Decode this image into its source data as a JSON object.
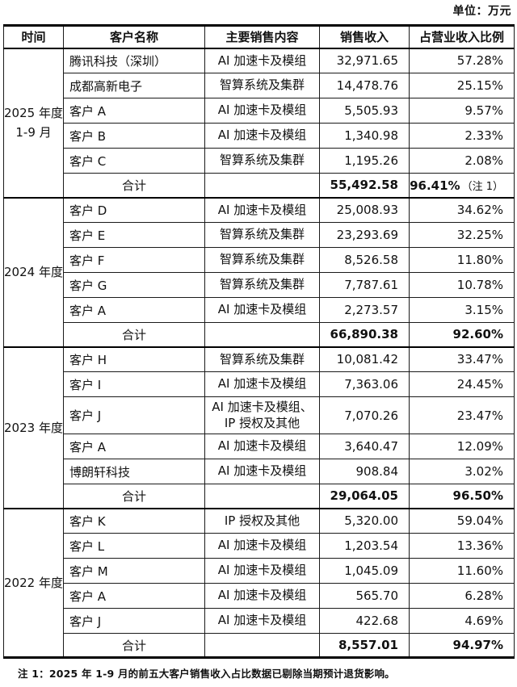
{
  "unit_label": "单位：万元",
  "table": {
    "columns": [
      "时间",
      "客户名称",
      "主要销售内容",
      "销售收入",
      "占营业收入比例"
    ],
    "sections": [
      {
        "period_lines": [
          "2025 年度",
          "1-9 月"
        ],
        "rows": [
          {
            "customer": "腾讯科技（深圳）",
            "content": "AI 加速卡及模组",
            "revenue": "32,971.65",
            "share": "57.28%"
          },
          {
            "customer": "成都高新电子",
            "content": "智算系统及集群",
            "revenue": "14,478.76",
            "share": "25.15%"
          },
          {
            "customer": "客户 A",
            "content": "AI 加速卡及模组",
            "revenue": "5,505.93",
            "share": "9.57%"
          },
          {
            "customer": "客户 B",
            "content": "AI 加速卡及模组",
            "revenue": "1,340.98",
            "share": "2.33%"
          },
          {
            "customer": "客户 C",
            "content": "智算系统及集群",
            "revenue": "1,195.26",
            "share": "2.08%"
          }
        ],
        "total": {
          "label": "合计",
          "revenue": "55,492.58",
          "share": "96.41%",
          "share_note": "（注 1）"
        }
      },
      {
        "period_lines": [
          "2024 年度"
        ],
        "rows": [
          {
            "customer": "客户 D",
            "content": "AI 加速卡及模组",
            "revenue": "25,008.93",
            "share": "34.62%"
          },
          {
            "customer": "客户 E",
            "content": "智算系统及集群",
            "revenue": "23,293.69",
            "share": "32.25%"
          },
          {
            "customer": "客户 F",
            "content": "智算系统及集群",
            "revenue": "8,526.58",
            "share": "11.80%"
          },
          {
            "customer": "客户 G",
            "content": "智算系统及集群",
            "revenue": "7,787.61",
            "share": "10.78%"
          },
          {
            "customer": "客户 A",
            "content": "AI 加速卡及模组",
            "revenue": "2,273.57",
            "share": "3.15%"
          }
        ],
        "total": {
          "label": "合计",
          "revenue": "66,890.38",
          "share": "92.60%"
        }
      },
      {
        "period_lines": [
          "2023 年度"
        ],
        "rows": [
          {
            "customer": "客户 H",
            "content": "智算系统及集群",
            "revenue": "10,081.42",
            "share": "33.47%"
          },
          {
            "customer": "客户 I",
            "content": "AI 加速卡及模组",
            "revenue": "7,363.06",
            "share": "24.45%"
          },
          {
            "customer": "客户 J",
            "content": "AI 加速卡及模组、IP 授权及其他",
            "revenue": "7,070.26",
            "share": "23.47%",
            "tall": true
          },
          {
            "customer": "客户 A",
            "content": "AI 加速卡及模组",
            "revenue": "3,640.47",
            "share": "12.09%"
          },
          {
            "customer": "博朗轩科技",
            "content": "AI 加速卡及模组",
            "revenue": "908.84",
            "share": "3.02%"
          }
        ],
        "total": {
          "label": "合计",
          "revenue": "29,064.05",
          "share": "96.50%"
        }
      },
      {
        "period_lines": [
          "2022 年度"
        ],
        "rows": [
          {
            "customer": "客户 K",
            "content": "IP 授权及其他",
            "revenue": "5,320.00",
            "share": "59.04%"
          },
          {
            "customer": "客户 L",
            "content": "AI 加速卡及模组",
            "revenue": "1,203.54",
            "share": "13.36%"
          },
          {
            "customer": "客户 M",
            "content": "AI 加速卡及模组",
            "revenue": "1,045.09",
            "share": "11.60%"
          },
          {
            "customer": "客户 A",
            "content": "AI 加速卡及模组",
            "revenue": "565.70",
            "share": "6.28%"
          },
          {
            "customer": "客户 J",
            "content": "AI 加速卡及模组",
            "revenue": "422.68",
            "share": "4.69%"
          }
        ],
        "total": {
          "label": "合计",
          "revenue": "8,557.01",
          "share": "94.97%"
        }
      }
    ]
  },
  "footnote": "注 1：2025 年 1-9 月的前五大客户销售收入占比数据已剔除当期预计退货影响。"
}
